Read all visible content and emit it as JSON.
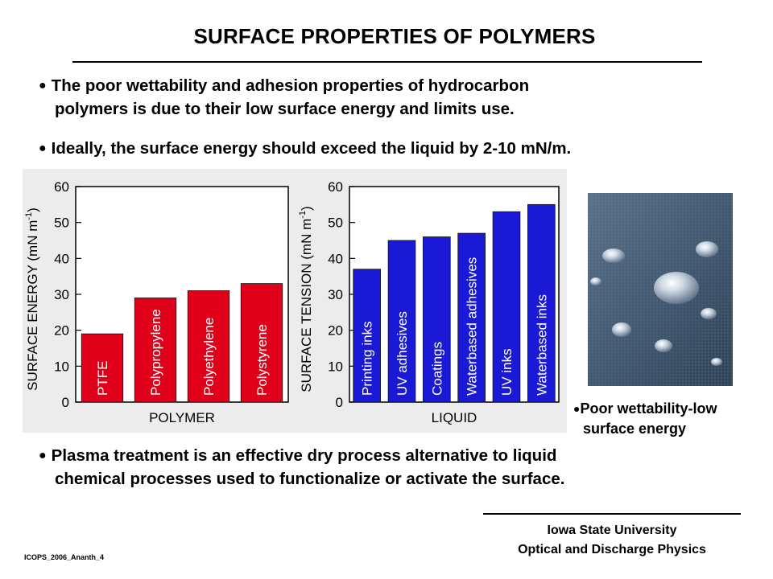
{
  "slide": {
    "title": "SURFACE PROPERTIES OF POLYMERS",
    "bullets": [
      {
        "line1": "The poor wettability and adhesion properties of hydrocarbon",
        "line2": "polymers is due to their low surface energy and limits use."
      },
      {
        "line1": "Ideally, the surface energy should exceed the liquid by 2-10 mN/m."
      },
      {
        "line1": "Plasma treatment is an effective dry process alternative to liquid",
        "line2": "chemical processes used to functionalize or activate the surface."
      }
    ],
    "photo_caption": {
      "line1": "Poor wettability-low",
      "line2": "surface energy"
    },
    "footer": {
      "university": "Iowa State University",
      "group": "Optical and Discharge Physics",
      "slide_id": "ICOPS_2006_Ananth_4"
    }
  },
  "colors": {
    "polymer_bar": "#e0001a",
    "liquid_bar": "#1a1ad6",
    "chart_bg": "#ececec"
  },
  "chart_data": [
    {
      "type": "bar",
      "categories": [
        "PTFE",
        "Polypropylene",
        "Polyethylene",
        "Polystyrene"
      ],
      "values": [
        19,
        29,
        31,
        33
      ],
      "xlabel": "POLYMER",
      "ylabel": "SURFACE ENERGY (mN m-1)",
      "ylim": [
        0,
        60
      ],
      "yticks": [
        0,
        10,
        20,
        30,
        40,
        50,
        60
      ],
      "grid": false
    },
    {
      "type": "bar",
      "categories": [
        "Printing inks",
        "UV adhesives",
        "Coatings",
        "Waterbased adhesives",
        "UV inks",
        "Waterbased inks"
      ],
      "values": [
        37,
        45,
        46,
        47,
        53,
        55
      ],
      "xlabel": "LIQUID",
      "ylabel": "SURFACE TENSION (mN m-1)",
      "ylim": [
        0,
        60
      ],
      "yticks": [
        0,
        10,
        20,
        30,
        40,
        50,
        60
      ],
      "grid": false
    }
  ]
}
